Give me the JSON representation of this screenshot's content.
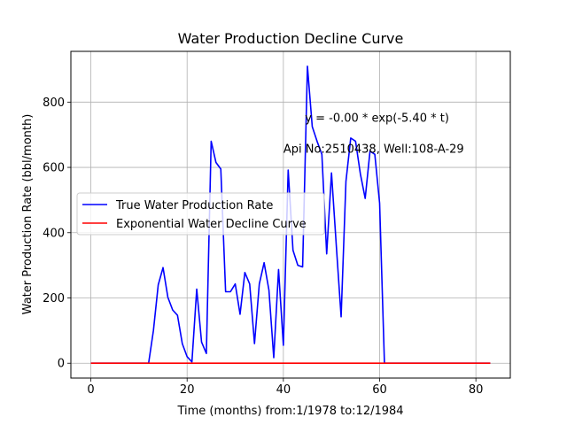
{
  "chart_data": {
    "type": "line",
    "title": "Water Production Decline Curve",
    "xlabel": "Time (months) from:1/1978 to:12/1984",
    "ylabel": "Water Production Rate (bbl/month)",
    "xlim": [
      -4.15,
      87.15
    ],
    "ylim": [
      -45.5,
      955.5
    ],
    "xticks": [
      0,
      20,
      40,
      60,
      80
    ],
    "yticks": [
      0,
      200,
      400,
      600,
      800
    ],
    "grid": true,
    "legend_position": "center-left",
    "annotations": [
      {
        "text": "y = -0.00 * exp(-5.40 * t)",
        "x": 44.5,
        "y": 740
      },
      {
        "text": "Api No:2510438, Well:108-A-29",
        "x": 40,
        "y": 645
      }
    ],
    "series": [
      {
        "name": "True Water Production Rate",
        "color": "#0000ff",
        "x": [
          0,
          1,
          2,
          3,
          4,
          5,
          6,
          7,
          8,
          9,
          10,
          11,
          12,
          13,
          14,
          15,
          16,
          17,
          18,
          19,
          20,
          21,
          22,
          23,
          24,
          25,
          26,
          27,
          28,
          29,
          30,
          31,
          32,
          33,
          34,
          35,
          36,
          37,
          38,
          39,
          40,
          41,
          42,
          43,
          44,
          45,
          46,
          47,
          48,
          49,
          50,
          51,
          52,
          53,
          54,
          55,
          56,
          57,
          58,
          59,
          60,
          61,
          62,
          63,
          64,
          65,
          66,
          67,
          68,
          69,
          70,
          71,
          72,
          73,
          74,
          75,
          76,
          77,
          78,
          79,
          80,
          81,
          82,
          83
        ],
        "y": [
          0,
          0,
          0,
          0,
          0,
          0,
          0,
          0,
          0,
          0,
          0,
          0,
          0,
          100,
          240,
          293,
          202,
          163,
          147,
          60,
          20,
          4,
          227,
          65,
          30,
          680,
          615,
          595,
          219,
          219,
          243,
          150,
          278,
          243,
          60,
          243,
          308,
          224,
          17,
          287,
          55,
          592,
          346,
          300,
          295,
          910,
          725,
          680,
          640,
          335,
          583,
          360,
          142,
          557,
          690,
          680,
          580,
          505,
          650,
          640,
          490,
          0,
          0,
          0,
          0,
          0,
          0,
          0,
          0,
          0,
          0,
          0,
          0,
          0,
          0,
          0,
          0,
          0,
          0,
          0,
          0,
          0,
          0,
          0
        ]
      },
      {
        "name": "Exponential Water Decline Curve",
        "color": "#ff0000",
        "x": [
          0,
          83
        ],
        "y": [
          0,
          0
        ]
      }
    ]
  }
}
